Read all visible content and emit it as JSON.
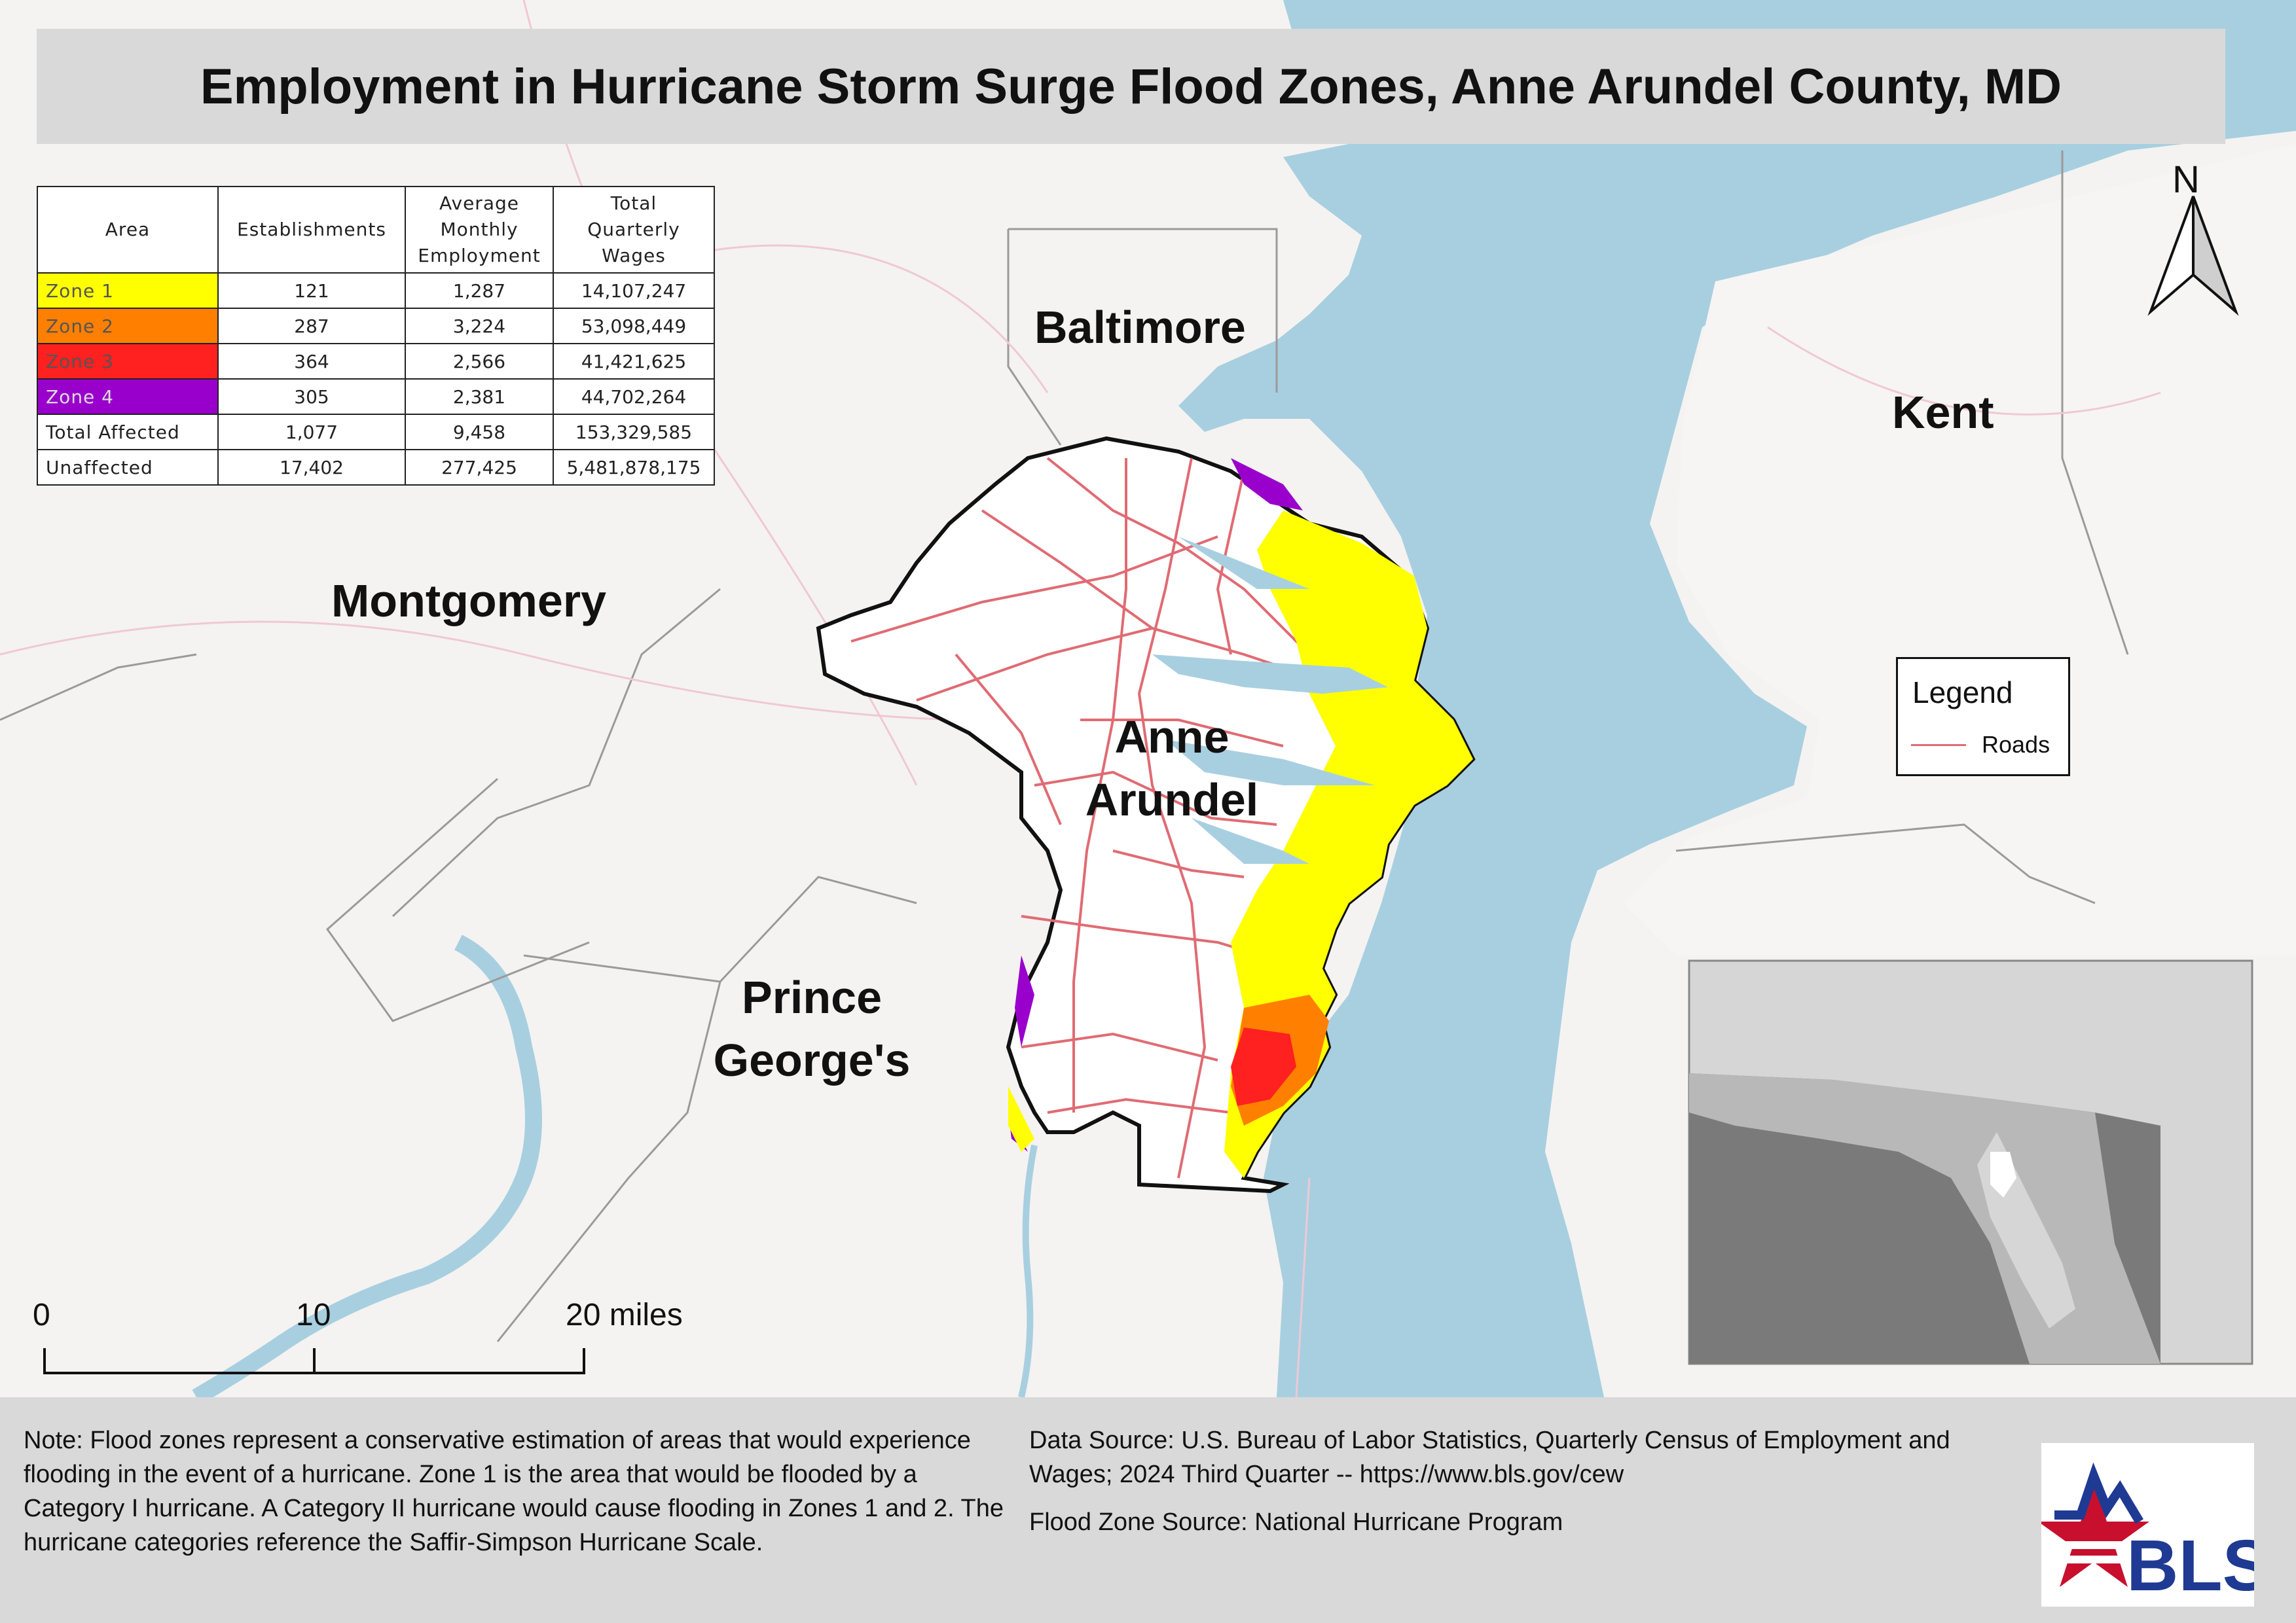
{
  "title": "Employment in Hurricane Storm Surge Flood Zones, Anne Arundel County, MD",
  "colors": {
    "zone1": "#ffff00",
    "zone2": "#ff8000",
    "zone3": "#ff2020",
    "zone4": "#9900cc",
    "water": "#a8cfe0",
    "land": "#f4f3f1",
    "roads": "#e06b73",
    "county_fill": "#ffffff"
  },
  "table": {
    "headers": [
      "Area",
      "Establishments",
      "Average Monthly Employment",
      "Total Quarterly Wages"
    ],
    "rows": [
      {
        "area": "Zone 1",
        "establishments": "121",
        "employment": "1,287",
        "wages": "14,107,247",
        "color": "#ffff00",
        "text_color": "#555"
      },
      {
        "area": "Zone 2",
        "establishments": "287",
        "employment": "3,224",
        "wages": "53,098,449",
        "color": "#ff8000",
        "text_color": "#555"
      },
      {
        "area": "Zone 3",
        "establishments": "364",
        "employment": "2,566",
        "wages": "41,421,625",
        "color": "#ff2020",
        "text_color": "#555"
      },
      {
        "area": "Zone 4",
        "establishments": "305",
        "employment": "2,381",
        "wages": "44,702,264",
        "color": "#9900cc",
        "text_color": "#ddd"
      },
      {
        "area": "Total Affected",
        "establishments": "1,077",
        "employment": "9,458",
        "wages": "153,329,585",
        "color": "#ffffff",
        "text_color": "#222"
      },
      {
        "area": "Unaffected",
        "establishments": "17,402",
        "employment": "277,425",
        "wages": "5,481,878,175",
        "color": "#ffffff",
        "text_color": "#222"
      }
    ]
  },
  "map_labels": {
    "baltimore": "Baltimore",
    "kent": "Kent",
    "montgomery": "Montgomery",
    "anne_arundel_1": "Anne",
    "anne_arundel_2": "Arundel",
    "prince_georges_1": "Prince",
    "prince_georges_2": "George's"
  },
  "north_arrow": "N",
  "legend": {
    "title": "Legend",
    "roads": "Roads"
  },
  "scale_bar": {
    "labels": [
      "0",
      "10",
      "20 miles"
    ]
  },
  "footer": {
    "note": "Note: Flood zones represent a conservative estimation of areas that would experience flooding in the event of a hurricane. Zone 1 is the area that would be flooded by a Category I hurricane. A Category II hurricane would cause flooding in Zones 1 and 2. The hurricane categories reference the Saffir-Simpson Hurricane Scale.",
    "data_source": "Data Source: U.S. Bureau of Labor Statistics, Quarterly Census of Employment and Wages; 2024 Third Quarter -- https://www.bls.gov/cew",
    "flood_source": "Flood Zone Source: National Hurricane Program",
    "logo_text": "BLS"
  }
}
